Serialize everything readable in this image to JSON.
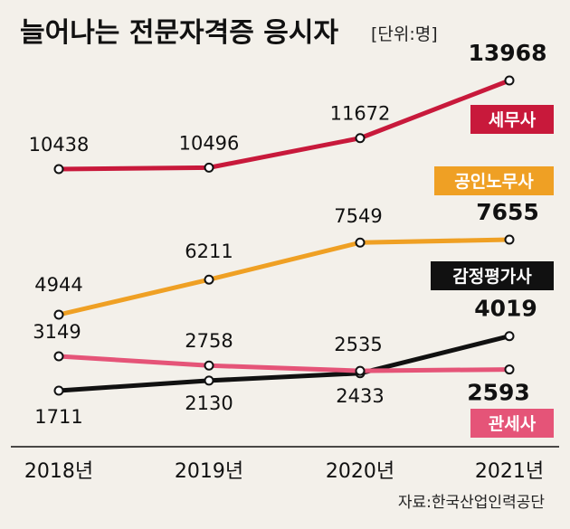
{
  "chart_data": {
    "type": "line",
    "title": "늘어나는 전문자격증 응시자",
    "unit_note": "[단위:명]",
    "categories": [
      "2018년",
      "2019년",
      "2020년",
      "2021년"
    ],
    "series": [
      {
        "name": "세무사",
        "color": "#c8193b",
        "values": [
          10438,
          10496,
          11672,
          13968
        ]
      },
      {
        "name": "공인노무사",
        "color": "#efa024",
        "values": [
          4944,
          6211,
          7549,
          7655
        ]
      },
      {
        "name": "감정평가사",
        "color": "#111111",
        "values": [
          1711,
          2130,
          2433,
          4019
        ]
      },
      {
        "name": "관세사",
        "color": "#e55478",
        "values": [
          3149,
          2758,
          2535,
          2593
        ]
      }
    ],
    "source": "자료:한국산업인력공단",
    "grid": false,
    "legend": "inline labels"
  }
}
